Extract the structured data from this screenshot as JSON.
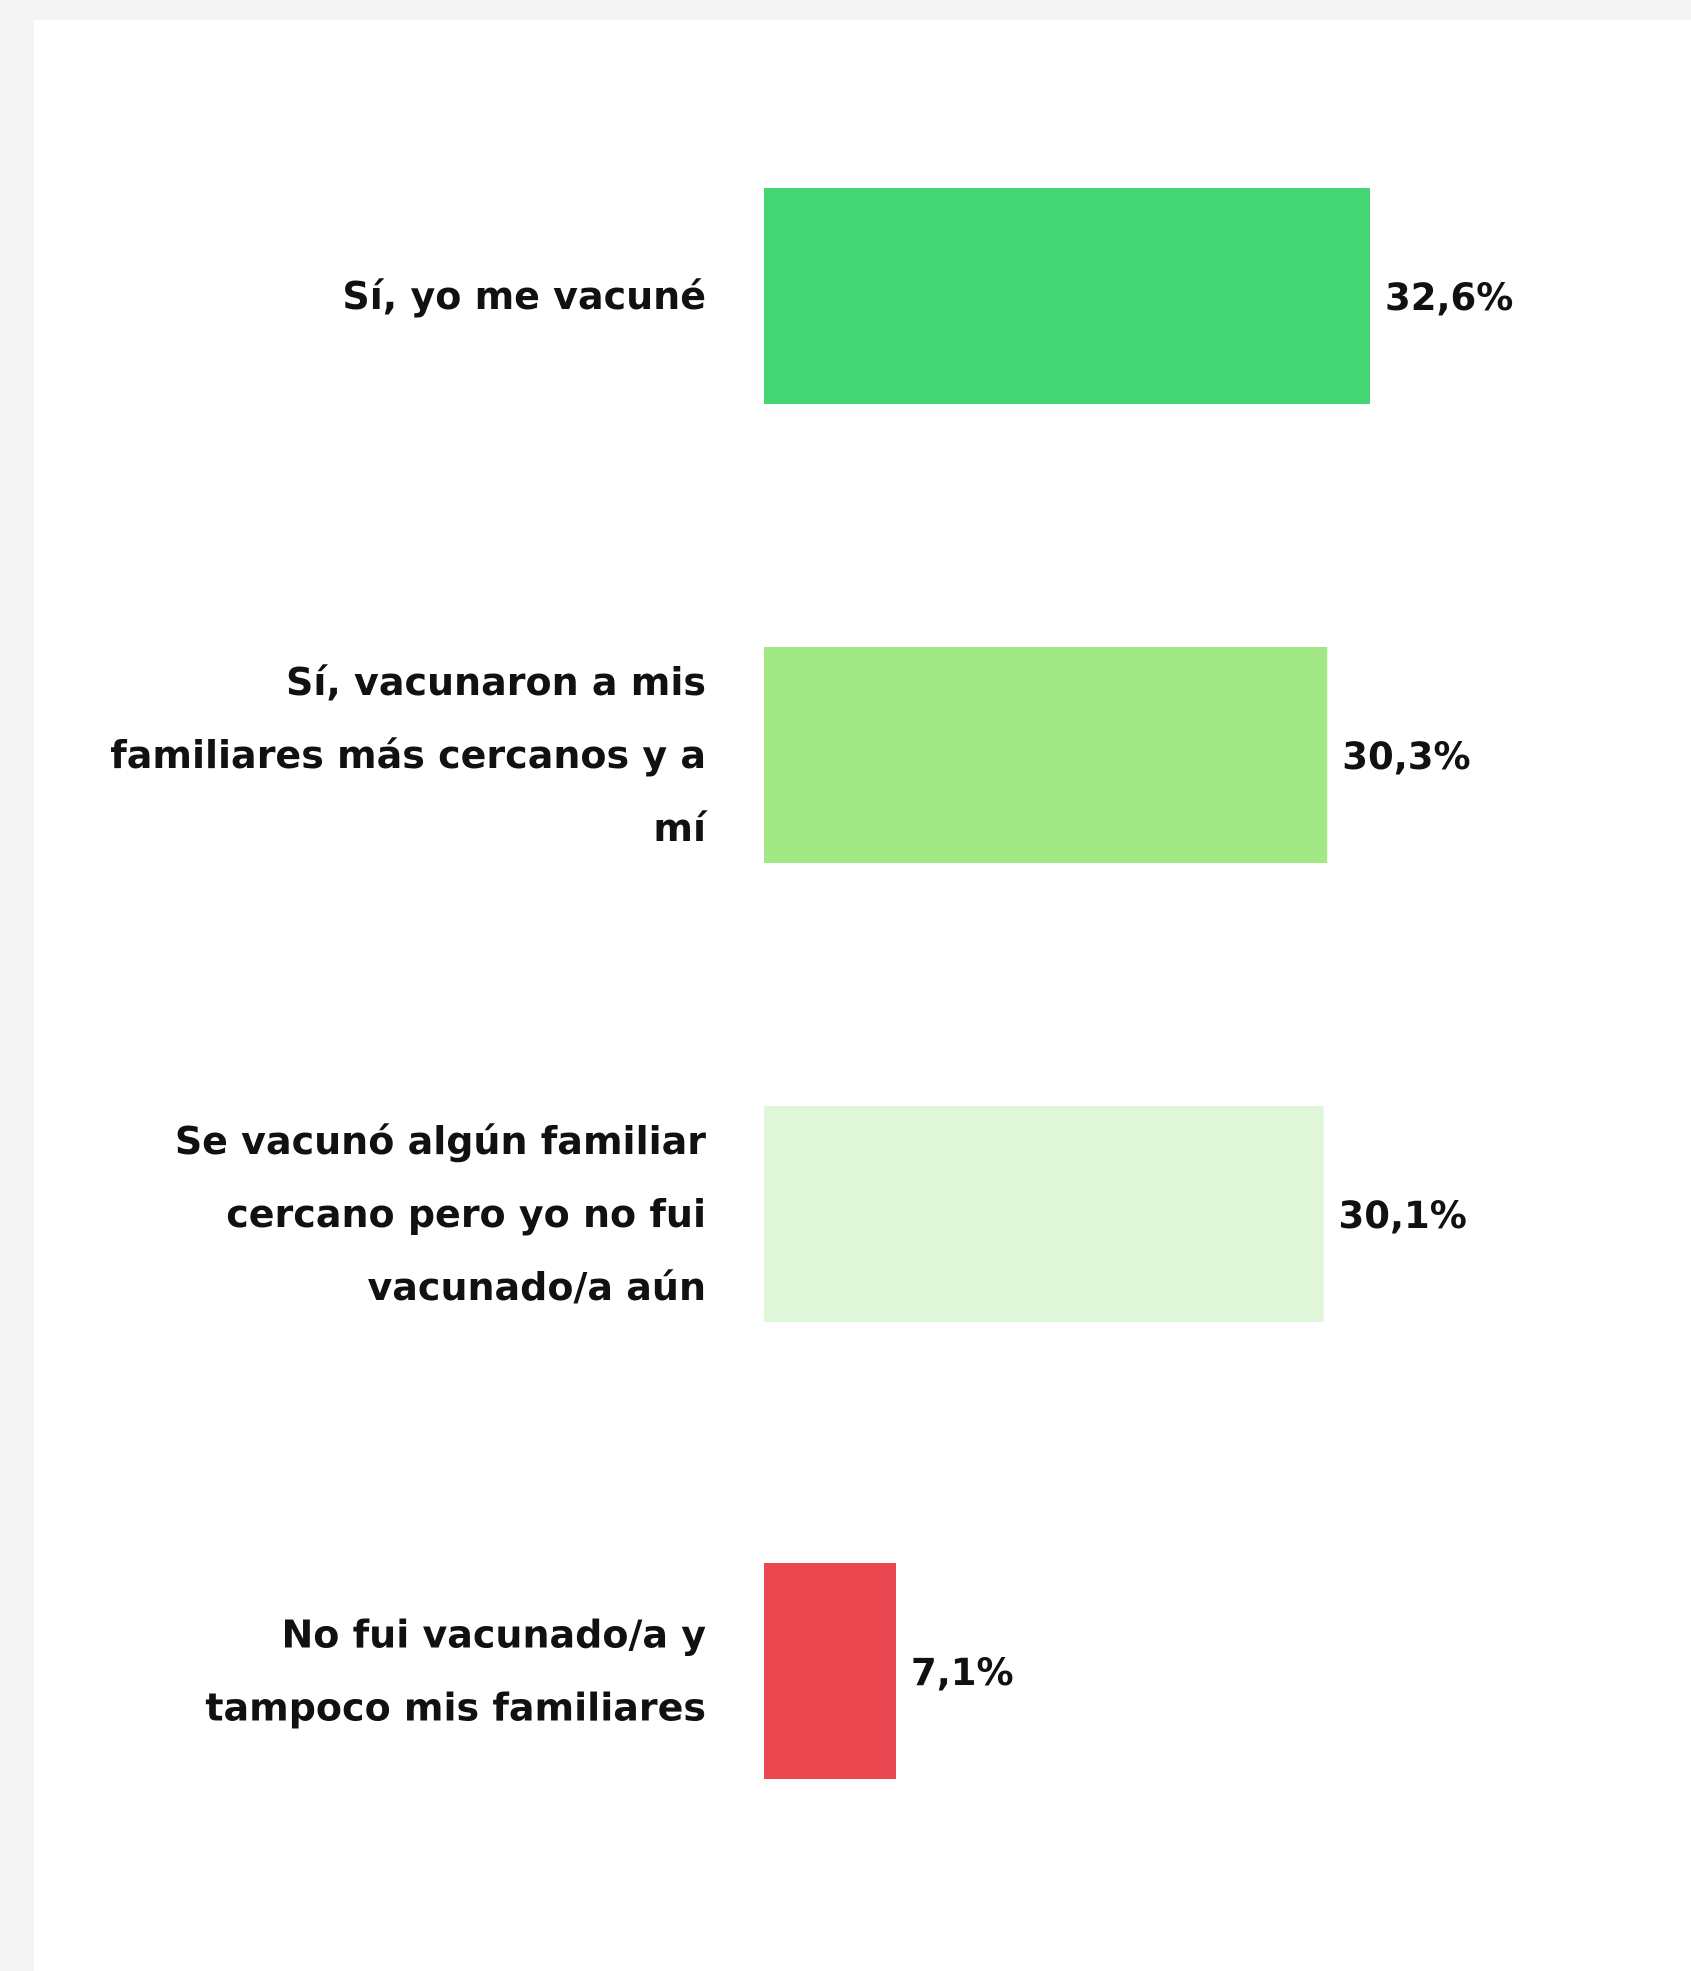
{
  "chart_data": {
    "type": "bar",
    "orientation": "horizontal",
    "categories": [
      "Sí, yo me vacuné",
      "Sí, vacunaron a mis familiares más cercanos y a mí",
      "Se vacunó algún familiar cercano pero yo no fui vacunado/a aún",
      "No fui vacunado/a y tampoco mis familiares"
    ],
    "category_lines": [
      [
        "Sí, yo me vacuné"
      ],
      [
        "Sí, vacunaron a mis",
        "familiares más cercanos y a",
        "mí"
      ],
      [
        "Se vacunó algún familiar",
        "cercano pero yo no fui",
        "vacunado/a aún"
      ],
      [
        "No fui vacunado/a y",
        "tampoco mis familiares"
      ]
    ],
    "values": [
      32.6,
      30.3,
      30.1,
      7.1
    ],
    "value_labels": [
      "32,6%",
      "30,3%",
      "30,1%",
      "7,1%"
    ],
    "colors": [
      "#44d675",
      "#a2e885",
      "#dff7d8",
      "#ea4751"
    ],
    "xlim": [
      0,
      32.6
    ],
    "grid": false,
    "legend": false
  }
}
